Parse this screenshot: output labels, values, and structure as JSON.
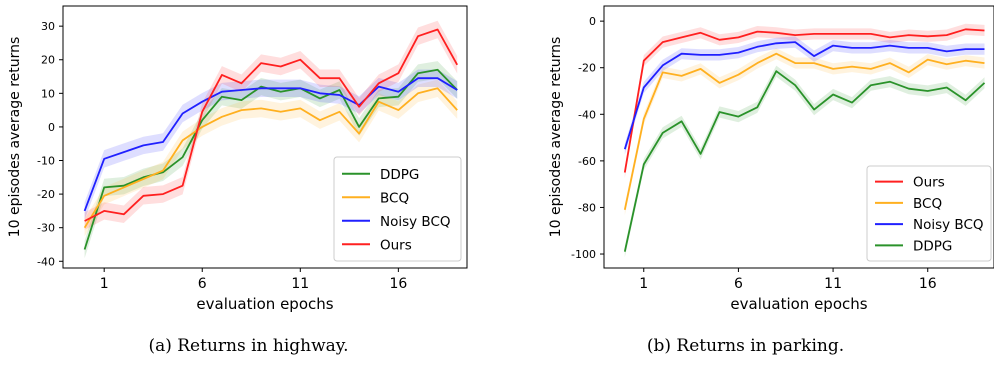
{
  "captions": {
    "a": "(a) Returns in highway.",
    "b": "(b) Returns in parking."
  },
  "colors": {
    "Ours": "#ff2020",
    "BCQ": "#ffb020",
    "Noisy BCQ": "#2020ff",
    "DDPG": "#2a922a"
  },
  "chart_data": [
    {
      "type": "line",
      "xlabel": "evaluation epochs",
      "ylabel": "10 episodes average returns",
      "x": [
        0,
        1,
        2,
        3,
        4,
        5,
        6,
        7,
        8,
        9,
        10,
        11,
        12,
        13,
        14,
        15,
        16,
        17,
        18,
        19
      ],
      "xticks": [
        1,
        6,
        11,
        16
      ],
      "yticks": [
        -40,
        -30,
        -20,
        -10,
        0,
        10,
        20,
        30
      ],
      "xlim": [
        -1.1,
        19.5
      ],
      "ylim": [
        -42,
        36
      ],
      "legend_position": "lower-right",
      "band": 2.6,
      "series": [
        {
          "name": "DDPG",
          "values": [
            -36.5,
            -18,
            -17.5,
            -15,
            -13.5,
            -9,
            2,
            9,
            8,
            12,
            10.5,
            11.5,
            8.5,
            11,
            0,
            8.5,
            9,
            16,
            17,
            11
          ]
        },
        {
          "name": "BCQ",
          "values": [
            -30,
            -20.5,
            -18,
            -15.5,
            -13,
            -4,
            0,
            3,
            5,
            5.5,
            4.5,
            5.5,
            2,
            4.5,
            -2,
            7.5,
            5,
            10,
            11.5,
            5
          ]
        },
        {
          "name": "Noisy BCQ",
          "values": [
            -25,
            -9.5,
            -7.5,
            -5.5,
            -4.5,
            4,
            7.5,
            10.5,
            11,
            11.5,
            11.5,
            11.5,
            10,
            9.5,
            6.5,
            12,
            10.5,
            14.5,
            14.5,
            11
          ]
        },
        {
          "name": "Ours",
          "values": [
            -28,
            -25,
            -26,
            -20.5,
            -20,
            -17.5,
            4.5,
            15.5,
            13,
            19,
            18,
            20,
            14.5,
            14.5,
            6,
            13,
            16,
            27,
            29,
            18.5
          ]
        }
      ]
    },
    {
      "type": "line",
      "xlabel": "evaluation epochs",
      "ylabel": "10 episodes average returns",
      "x": [
        0,
        1,
        2,
        3,
        4,
        5,
        6,
        7,
        8,
        9,
        10,
        11,
        12,
        13,
        14,
        15,
        16,
        17,
        18,
        19
      ],
      "xticks": [
        1,
        6,
        11,
        16
      ],
      "yticks": [
        -100,
        -80,
        -60,
        -40,
        -20,
        0
      ],
      "xlim": [
        -1.1,
        19.5
      ],
      "ylim": [
        -106,
        6.5
      ],
      "legend_position": "lower-right",
      "band": 2.4,
      "series": [
        {
          "name": "Ours",
          "values": [
            -65,
            -17,
            -9,
            -7,
            -5,
            -8,
            -7,
            -4.5,
            -5,
            -6,
            -5.5,
            -5.5,
            -5.5,
            -5.5,
            -7,
            -6,
            -6.5,
            -6,
            -3.5,
            -4
          ]
        },
        {
          "name": "BCQ",
          "values": [
            -81,
            -42,
            -22,
            -23.5,
            -20.5,
            -26.5,
            -23,
            -18,
            -14,
            -18,
            -18,
            -20.5,
            -19.5,
            -20.5,
            -18,
            -22,
            -16.5,
            -18.5,
            -17,
            -18
          ]
        },
        {
          "name": "Noisy BCQ",
          "values": [
            -55,
            -28.5,
            -19,
            -14,
            -14.5,
            -14.5,
            -13.5,
            -11,
            -9.5,
            -9,
            -15,
            -10.5,
            -11.5,
            -11.5,
            -10.5,
            -11.5,
            -11.5,
            -13,
            -12,
            -12
          ]
        },
        {
          "name": "DDPG",
          "values": [
            -99,
            -61.5,
            -48,
            -43,
            -57,
            -39,
            -41,
            -37,
            -21.5,
            -27.5,
            -38,
            -31.5,
            -35,
            -27.5,
            -26,
            -29,
            -30,
            -28.5,
            -34,
            -26.5
          ]
        }
      ]
    }
  ]
}
